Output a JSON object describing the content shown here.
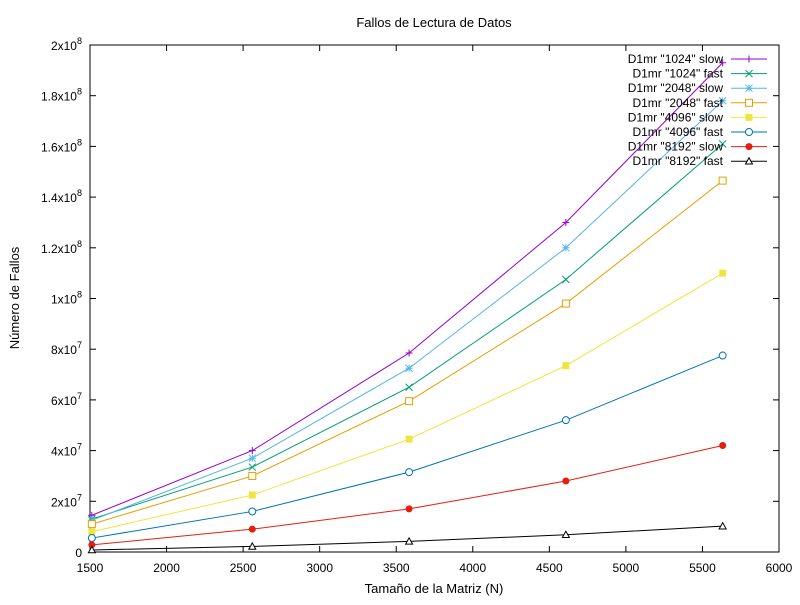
{
  "chart_data": {
    "type": "line",
    "title": "Fallos de Lectura de Datos",
    "xlabel": "Tamaño de la Matriz (N)",
    "ylabel": "Número de Fallos",
    "xlim": [
      1500,
      6000
    ],
    "ylim": [
      0,
      200000000
    ],
    "x_ticks": [
      "1500",
      "2000",
      "2500",
      "3000",
      "3500",
      "4000",
      "4500",
      "5000",
      "5500",
      "6000"
    ],
    "x_tick_values": [
      1500,
      2000,
      2500,
      3000,
      3500,
      4000,
      4500,
      5000,
      5500,
      6000
    ],
    "y_tick_values": [
      0,
      20000000,
      40000000,
      60000000,
      80000000,
      100000000,
      120000000,
      140000000,
      160000000,
      180000000,
      200000000
    ],
    "y_ticks": [
      {
        "mantissa": "0",
        "exp": ""
      },
      {
        "mantissa": "2x10",
        "exp": "7"
      },
      {
        "mantissa": "4x10",
        "exp": "7"
      },
      {
        "mantissa": "6x10",
        "exp": "7"
      },
      {
        "mantissa": "8x10",
        "exp": "7"
      },
      {
        "mantissa": "1x10",
        "exp": "8"
      },
      {
        "mantissa": "1.2x10",
        "exp": "8"
      },
      {
        "mantissa": "1.4x10",
        "exp": "8"
      },
      {
        "mantissa": "1.6x10",
        "exp": "8"
      },
      {
        "mantissa": "1.8x10",
        "exp": "8"
      },
      {
        "mantissa": "2x10",
        "exp": "8"
      }
    ],
    "legend_position": "top-right",
    "grid": false,
    "x": [
      1512,
      2560,
      3584,
      4608,
      5632
    ],
    "series": [
      {
        "name": "D1mr \"1024\" slow",
        "color": "#9400d3",
        "marker": "plus",
        "values": [
          14500000,
          40000000,
          78500000,
          130000000,
          193000000
        ]
      },
      {
        "name": "D1mr \"1024\" fast",
        "color": "#009e73",
        "marker": "cross",
        "values": [
          13000000,
          33500000,
          65000000,
          107500000,
          161000000
        ]
      },
      {
        "name": "D1mr \"2048\" slow",
        "color": "#56b4e9",
        "marker": "star",
        "values": [
          12500000,
          37000000,
          72500000,
          120000000,
          178000000
        ]
      },
      {
        "name": "D1mr \"2048\" fast",
        "color": "#e69f00",
        "marker": "open-square",
        "values": [
          11000000,
          30000000,
          59500000,
          98000000,
          146500000
        ]
      },
      {
        "name": "D1mr \"4096\" slow",
        "color": "#f0e442",
        "marker": "filled-square",
        "values": [
          8000000,
          22500000,
          44500000,
          73500000,
          110000000
        ]
      },
      {
        "name": "D1mr \"4096\" fast",
        "color": "#0072b2",
        "marker": "open-circle",
        "values": [
          5500000,
          16000000,
          31500000,
          52000000,
          77500000
        ]
      },
      {
        "name": "D1mr \"8192\" slow",
        "color": "#e51e10",
        "marker": "filled-circle",
        "values": [
          2800000,
          9000000,
          17000000,
          28000000,
          42000000
        ]
      },
      {
        "name": "D1mr \"8192\" fast",
        "color": "#000000",
        "marker": "open-triangle",
        "values": [
          800000,
          2200000,
          4200000,
          6800000,
          10200000
        ]
      }
    ]
  }
}
